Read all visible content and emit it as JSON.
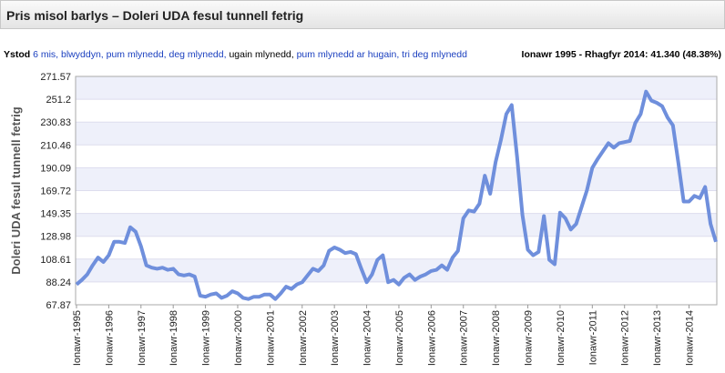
{
  "header": {
    "title": "Pris misol barlys – Doleri UDA fesul tunnell fetrig"
  },
  "toolbar": {
    "label": "Ystod",
    "links_a": "6 mis, blwyddyn, pum mlynedd, deg mlynedd,",
    "current": "ugain mlynedd,",
    "links_b": "pum mlynedd ar hugain, tri deg mlynedd",
    "summary": "Ionawr 1995 - Rhagfyr 2014: 41.340 (48.38%)"
  },
  "chart_data": {
    "type": "line",
    "y_label": "Doleri UDA fesul tunnell fetrig",
    "color": "#6f8fdc",
    "ylim": [
      67.87,
      271.57
    ],
    "yticks": [
      67.87,
      88.24,
      108.61,
      128.98,
      149.35,
      169.72,
      190.09,
      210.46,
      230.83,
      251.2,
      271.57
    ],
    "categories": [
      "Ionawr-1995",
      null,
      null,
      null,
      null,
      null,
      "Ionawr-1996",
      null,
      null,
      null,
      null,
      null,
      "Ionawr-1997",
      null,
      null,
      null,
      null,
      null,
      "Ionawr-1998",
      null,
      null,
      null,
      null,
      null,
      "Ionawr-1999",
      null,
      null,
      null,
      null,
      null,
      "Ionawr-2000",
      null,
      null,
      null,
      null,
      null,
      "Ionawr-2001",
      null,
      null,
      null,
      null,
      null,
      "Ionawr-2002",
      null,
      null,
      null,
      null,
      null,
      "Ionawr-2003",
      null,
      null,
      null,
      null,
      null,
      "Ionawr-2004",
      null,
      null,
      null,
      null,
      null,
      "Ionawr-2005",
      null,
      null,
      null,
      null,
      null,
      "Ionawr-2006",
      null,
      null,
      null,
      null,
      null,
      "Ionawr-2007",
      null,
      null,
      null,
      null,
      null,
      "Ionawr-2008",
      null,
      null,
      null,
      null,
      null,
      "Ionawr-2009",
      null,
      null,
      null,
      null,
      null,
      "Ionawr-2010",
      null,
      null,
      null,
      null,
      null,
      "Ionawr-2011",
      null,
      null,
      null,
      null,
      null,
      "Ionawr-2012",
      null,
      null,
      null,
      null,
      null,
      "Ionawr-2013",
      null,
      null,
      null,
      null,
      null,
      "Ionawr-2014",
      null,
      null,
      null,
      null,
      null
    ],
    "values": [
      86,
      90,
      95,
      103,
      110,
      106,
      112,
      124,
      124,
      123,
      137,
      133,
      120,
      103,
      101,
      100,
      101,
      99,
      100,
      95,
      94,
      95,
      93,
      76,
      75,
      77,
      78,
      74,
      76,
      80,
      78,
      74,
      73,
      75,
      75,
      77,
      77,
      73,
      78,
      84,
      82,
      86,
      88,
      94,
      100,
      98,
      103,
      116,
      119,
      117,
      114,
      115,
      113,
      100,
      88,
      95,
      108,
      112,
      88,
      90,
      86,
      92,
      95,
      90,
      93,
      95,
      98,
      99,
      103,
      99,
      110,
      116,
      145,
      152,
      151,
      158,
      183,
      167,
      195,
      215,
      238,
      246,
      200,
      148,
      117,
      112,
      115,
      147,
      108,
      104,
      150,
      145,
      135,
      140,
      155,
      170,
      190,
      198,
      205,
      212,
      208,
      212,
      213,
      214,
      230,
      238,
      258,
      250,
      248,
      245,
      235,
      228,
      195,
      160,
      160,
      165,
      163,
      173,
      140,
      124
    ]
  }
}
